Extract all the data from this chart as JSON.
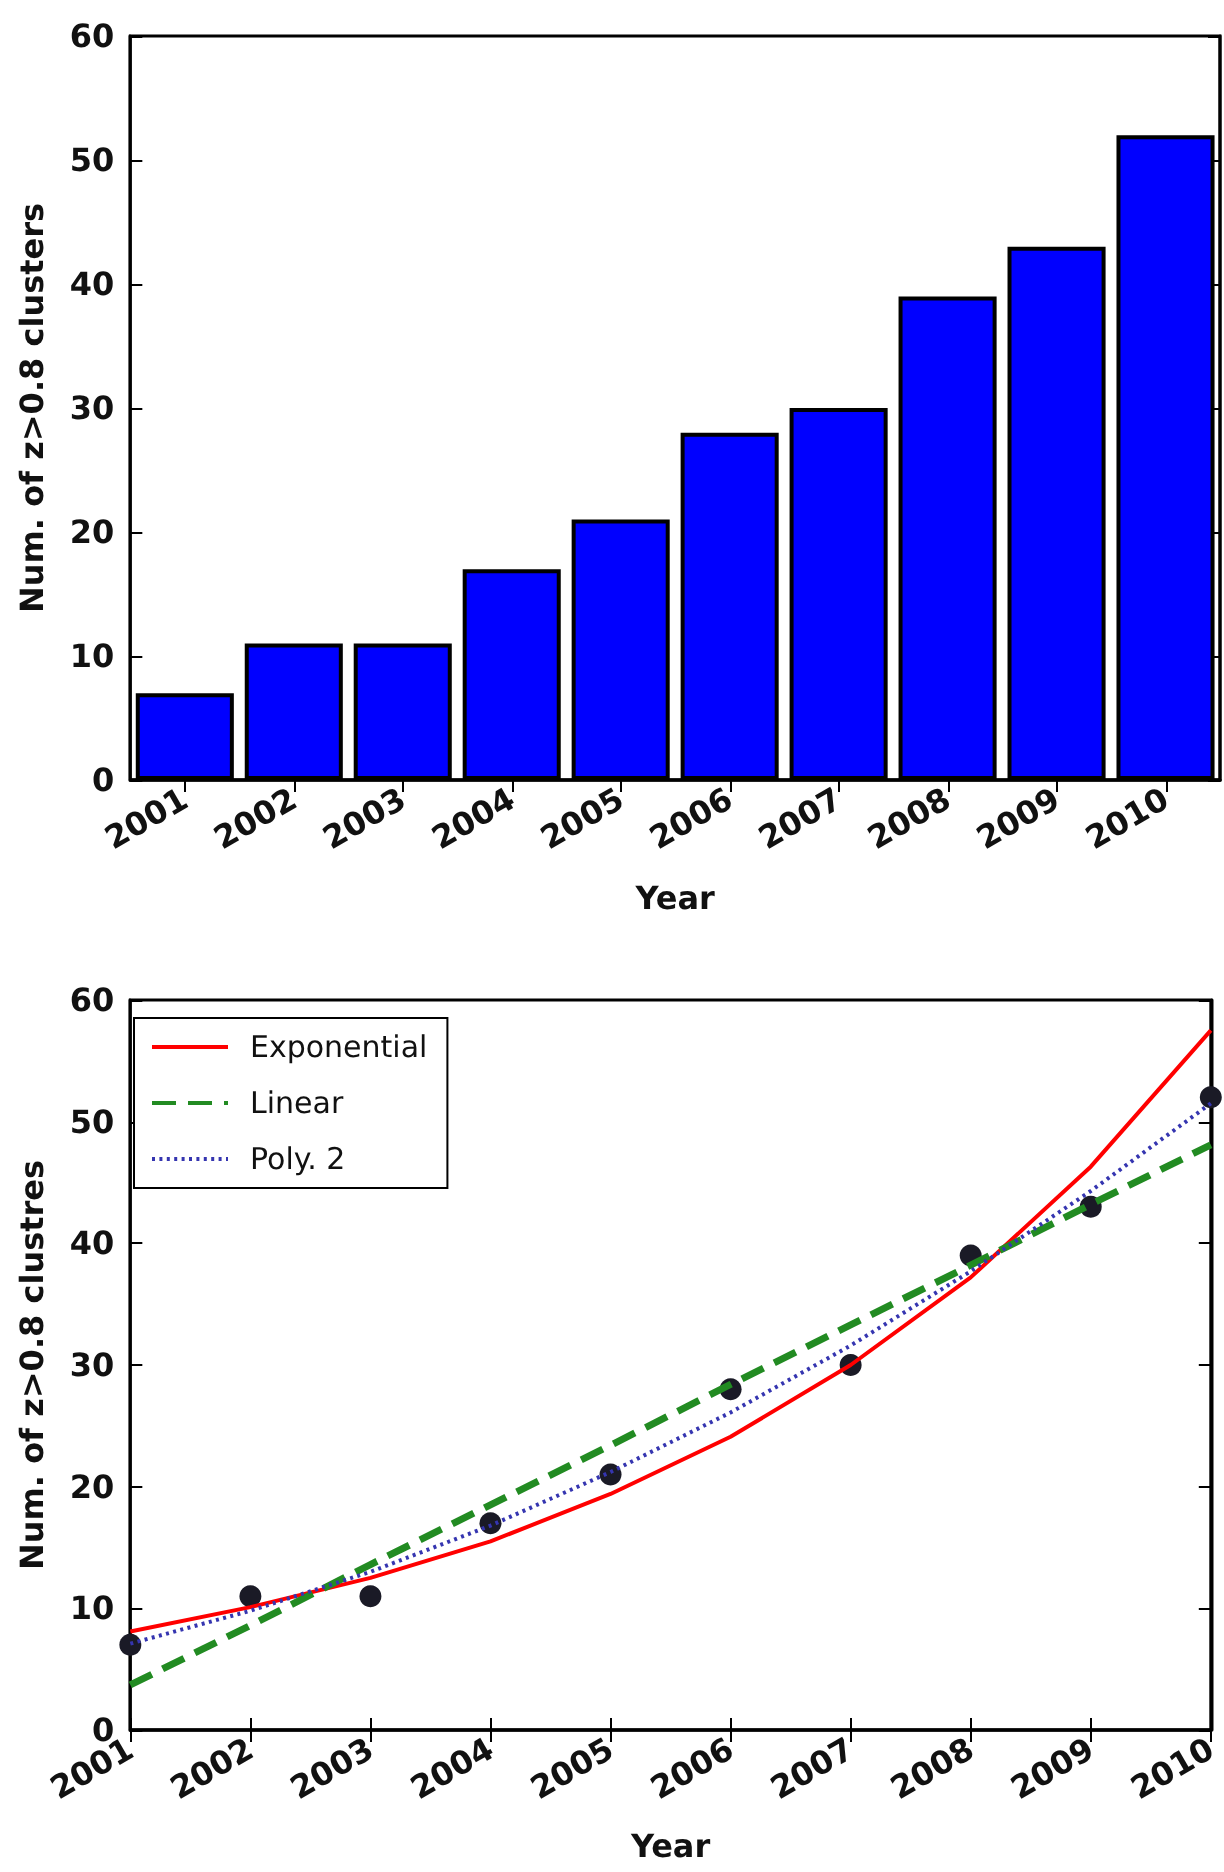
{
  "chart_data": [
    {
      "type": "bar",
      "categories": [
        "2001",
        "2002",
        "2003",
        "2004",
        "2005",
        "2006",
        "2007",
        "2008",
        "2009",
        "2010"
      ],
      "values": [
        7,
        11,
        11,
        17,
        21,
        28,
        30,
        39,
        43,
        52
      ],
      "color": "#0000ff",
      "xlabel": "Year",
      "ylabel": "Num. of z>0.8 clusters",
      "ylim": [
        0,
        60
      ],
      "yticks": [
        0,
        10,
        20,
        30,
        40,
        50,
        60
      ],
      "grid": false,
      "legend": false
    },
    {
      "type": "line",
      "x": [
        2001,
        2002,
        2003,
        2004,
        2005,
        2006,
        2007,
        2008,
        2009,
        2010
      ],
      "xlabel": "Year",
      "ylabel": "Num. of z>0.8 clustres",
      "xlim": [
        2001,
        2010
      ],
      "xticks": [
        2001,
        2002,
        2003,
        2004,
        2005,
        2006,
        2007,
        2008,
        2009,
        2010
      ],
      "ylim": [
        0,
        60
      ],
      "yticks": [
        0,
        10,
        20,
        30,
        40,
        50,
        60
      ],
      "grid": false,
      "legend": "top left",
      "series": [
        {
          "type": "scatter",
          "color": "#1a1a26",
          "marker": "circle",
          "values": [
            7,
            11,
            11,
            17,
            21,
            28,
            30,
            39,
            43,
            52
          ]
        },
        {
          "name": "Exponential",
          "color": "#ff0000",
          "line_style": "solid",
          "marker": "none",
          "values": [
            8.1,
            10.1,
            12.5,
            15.5,
            19.4,
            24.1,
            30,
            37.2,
            46.3,
            57.5
          ]
        },
        {
          "name": "Linear",
          "color": "#228b22",
          "line_style": "dashed",
          "marker": "none",
          "values": [
            3.7,
            8.6,
            13.6,
            18.5,
            23.4,
            28.4,
            33.3,
            38.2,
            43.2,
            48.1
          ]
        },
        {
          "name": "Poly. 2",
          "color": "#3535b0",
          "line_style": "dotted",
          "marker": "none",
          "values": [
            7.1,
            9.8,
            13.0,
            16.8,
            21.2,
            26.1,
            31.6,
            37.7,
            44.3,
            51.5
          ]
        }
      ]
    }
  ]
}
